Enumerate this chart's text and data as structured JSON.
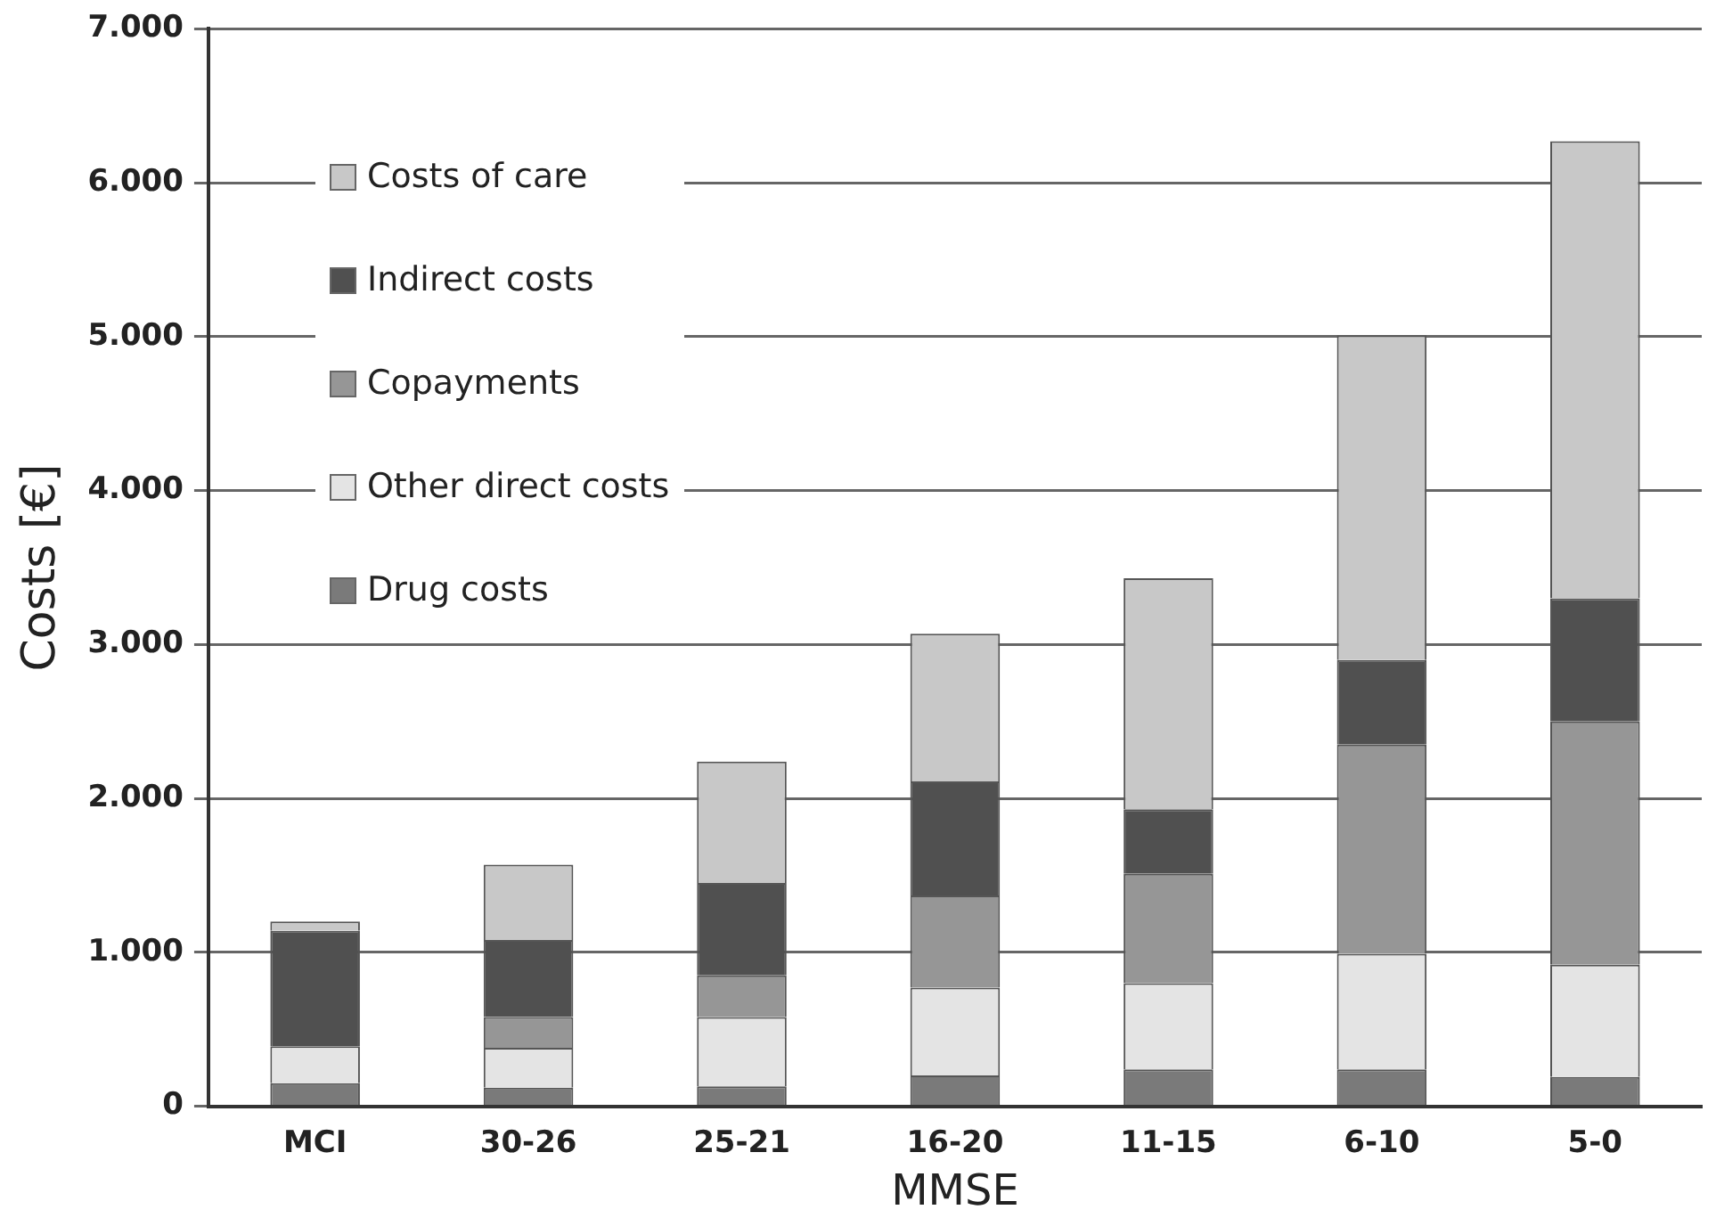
{
  "chart_data": {
    "type": "bar",
    "stacked": true,
    "xlabel": "MMSE",
    "ylabel": "Costs [€]",
    "categories": [
      "MCI",
      "30-26",
      "25-21",
      "16-20",
      "11-15",
      "6-10",
      "5-0"
    ],
    "series": [
      {
        "name": "Drug costs",
        "color": "#7a7a7a",
        "values": [
          150,
          120,
          130,
          200,
          240,
          240,
          190
        ]
      },
      {
        "name": "Other direct costs",
        "color": "#e4e4e4",
        "values": [
          240,
          260,
          450,
          570,
          560,
          750,
          730
        ]
      },
      {
        "name": "Copayments",
        "color": "#969696",
        "values": [
          0,
          200,
          270,
          600,
          710,
          1360,
          1580
        ]
      },
      {
        "name": "Indirect costs",
        "color": "#505050",
        "values": [
          750,
          500,
          600,
          740,
          420,
          550,
          800
        ]
      },
      {
        "name": "Costs of care",
        "color": "#c8c8c8",
        "values": [
          60,
          490,
          790,
          960,
          1500,
          2110,
          2970
        ]
      }
    ],
    "ylim": [
      0,
      7000
    ],
    "yticks": [
      {
        "value": 0,
        "label": "0"
      },
      {
        "value": 1000,
        "label": "1.000"
      },
      {
        "value": 2000,
        "label": "2.000"
      },
      {
        "value": 3000,
        "label": "3.000"
      },
      {
        "value": 4000,
        "label": "4.000"
      },
      {
        "value": 5000,
        "label": "5.000"
      },
      {
        "value": 6000,
        "label": "6.000"
      },
      {
        "value": 7000,
        "label": "7.000"
      }
    ],
    "grid": "y",
    "legend": "top left"
  }
}
